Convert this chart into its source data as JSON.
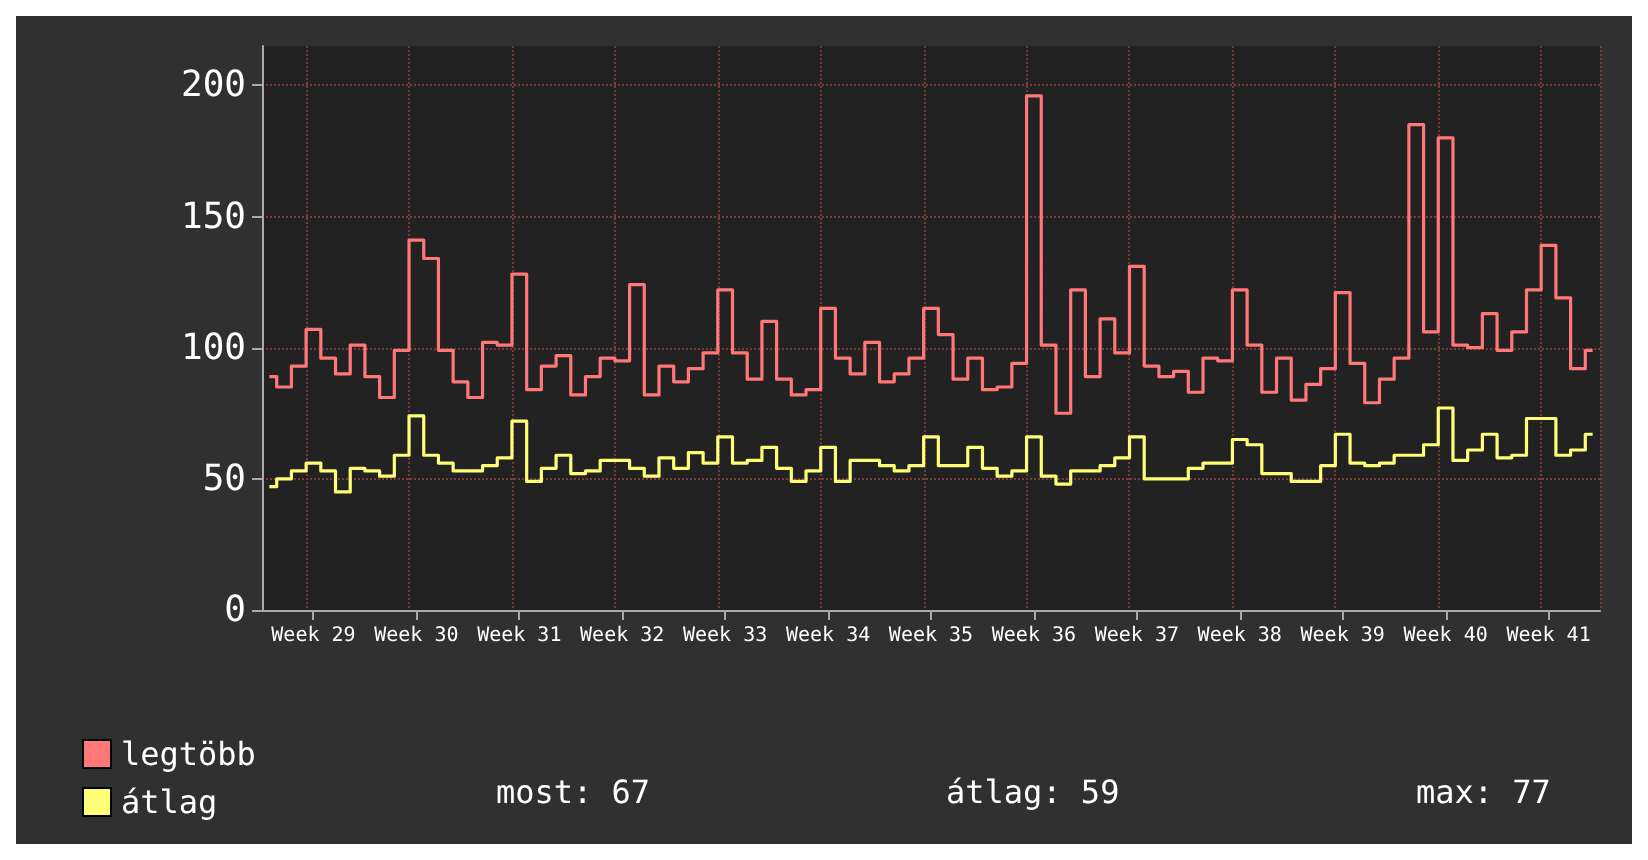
{
  "chart_data": {
    "type": "step",
    "categories": [
      null,
      null,
      null,
      "Week 29",
      null,
      null,
      null,
      null,
      null,
      null,
      "Week 30",
      null,
      null,
      null,
      null,
      null,
      null,
      "Week 31",
      null,
      null,
      null,
      null,
      null,
      null,
      "Week 32",
      null,
      null,
      null,
      null,
      null,
      null,
      "Week 33",
      null,
      null,
      null,
      null,
      null,
      null,
      "Week 34",
      null,
      null,
      null,
      null,
      null,
      null,
      "Week 35",
      null,
      null,
      null,
      null,
      null,
      null,
      "Week 36",
      null,
      null,
      null,
      null,
      null,
      null,
      "Week 37",
      null,
      null,
      null,
      null,
      null,
      null,
      "Week 38",
      null,
      null,
      null,
      null,
      null,
      null,
      "Week 39",
      null,
      null,
      null,
      null,
      null,
      null,
      "Week 40",
      null,
      null,
      null,
      null,
      null,
      null,
      "Week 41",
      null,
      null,
      null
    ],
    "series": [
      {
        "name": "legtöbb",
        "color": "#ff7777",
        "values": [
          89,
          85,
          93,
          107,
          96,
          90,
          101,
          89,
          81,
          99,
          141,
          134,
          99,
          87,
          81,
          102,
          101,
          128,
          84,
          93,
          97,
          82,
          89,
          96,
          95,
          124,
          82,
          93,
          87,
          92,
          98,
          122,
          98,
          88,
          110,
          88,
          82,
          84,
          115,
          96,
          90,
          102,
          87,
          90,
          96,
          115,
          105,
          88,
          96,
          84,
          85,
          94,
          196,
          101,
          75,
          122,
          89,
          111,
          98,
          131,
          93,
          89,
          91,
          83,
          96,
          95,
          122,
          101,
          83,
          96,
          80,
          86,
          92,
          121,
          94,
          79,
          88,
          96,
          185,
          106,
          180,
          101,
          100,
          113,
          99,
          106,
          122,
          139,
          119,
          92,
          99
        ]
      },
      {
        "name": "átlag",
        "color": "#ffff77",
        "values": [
          47,
          50,
          53,
          56,
          53,
          45,
          54,
          53,
          51,
          59,
          74,
          59,
          56,
          53,
          53,
          55,
          58,
          72,
          49,
          54,
          59,
          52,
          53,
          57,
          57,
          54,
          51,
          58,
          54,
          60,
          56,
          66,
          56,
          57,
          62,
          54,
          49,
          53,
          62,
          49,
          57,
          57,
          55,
          53,
          55,
          66,
          55,
          55,
          62,
          54,
          51,
          53,
          66,
          51,
          48,
          53,
          53,
          55,
          58,
          66,
          50,
          50,
          50,
          54,
          56,
          56,
          65,
          63,
          52,
          52,
          49,
          49,
          55,
          67,
          56,
          55,
          56,
          59,
          59,
          63,
          77,
          57,
          61,
          67,
          58,
          59,
          73,
          73,
          59,
          61,
          67
        ]
      }
    ],
    "ylim": [
      0,
      215
    ],
    "yticks": [
      0,
      50,
      100,
      150,
      200
    ],
    "grid": true,
    "legend": "bottom left",
    "annotations": [
      "most: 67",
      "átlag: 59",
      "max: 77"
    ]
  }
}
